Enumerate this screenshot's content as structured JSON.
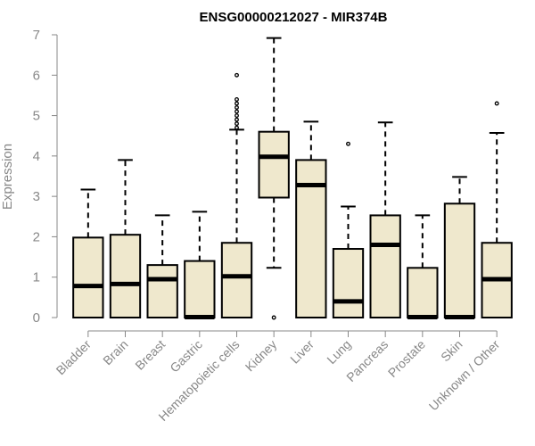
{
  "chart_data": {
    "type": "boxplot",
    "title": "ENSG00000212027 - MIR374B",
    "xlabel": "",
    "ylabel": "Expression",
    "ylim": [
      0,
      7
    ],
    "yticks": [
      0,
      1,
      2,
      3,
      4,
      5,
      6,
      7
    ],
    "grid": false,
    "categories": [
      "Bladder",
      "Brain",
      "Breast",
      "Gastric",
      "Hematopoietic cells",
      "Kidney",
      "Liver",
      "Lung",
      "Pancreas",
      "Prostate",
      "Skin",
      "Unknown / Other"
    ],
    "boxes": [
      {
        "min": 0,
        "q1": 0,
        "median": 0.78,
        "q3": 1.98,
        "max": 3.17,
        "outliers": []
      },
      {
        "min": 0,
        "q1": 0,
        "median": 0.83,
        "q3": 2.05,
        "max": 3.9,
        "outliers": []
      },
      {
        "min": 0,
        "q1": 0,
        "median": 0.95,
        "q3": 1.3,
        "max": 2.53,
        "outliers": []
      },
      {
        "min": 0,
        "q1": 0,
        "median": 0.01,
        "q3": 1.4,
        "max": 2.62,
        "outliers": []
      },
      {
        "min": 0,
        "q1": 0,
        "median": 1.02,
        "q3": 1.85,
        "max": 4.65,
        "outliers": [
          4.7,
          4.8,
          4.9,
          5.0,
          5.1,
          5.2,
          5.3,
          5.4,
          6.0
        ]
      },
      {
        "min": 1.23,
        "q1": 2.97,
        "median": 3.98,
        "q3": 4.6,
        "max": 6.92,
        "outliers": [
          0
        ]
      },
      {
        "min": 0,
        "q1": 0,
        "median": 3.28,
        "q3": 3.9,
        "max": 4.85,
        "outliers": []
      },
      {
        "min": 0,
        "q1": 0,
        "median": 0.4,
        "q3": 1.7,
        "max": 2.75,
        "outliers": [
          4.3
        ]
      },
      {
        "min": 0,
        "q1": 0,
        "median": 1.8,
        "q3": 2.53,
        "max": 4.83,
        "outliers": []
      },
      {
        "min": 0,
        "q1": 0,
        "median": 0.01,
        "q3": 1.23,
        "max": 2.53,
        "outliers": []
      },
      {
        "min": 0,
        "q1": 0,
        "median": 0.01,
        "q3": 2.82,
        "max": 3.48,
        "outliers": []
      },
      {
        "min": 0,
        "q1": 0,
        "median": 0.95,
        "q3": 1.85,
        "max": 4.57,
        "outliers": [
          5.3
        ]
      }
    ],
    "colors": {
      "box_fill": "#efe8cd",
      "stroke": "#000000",
      "axis": "#888888"
    }
  }
}
